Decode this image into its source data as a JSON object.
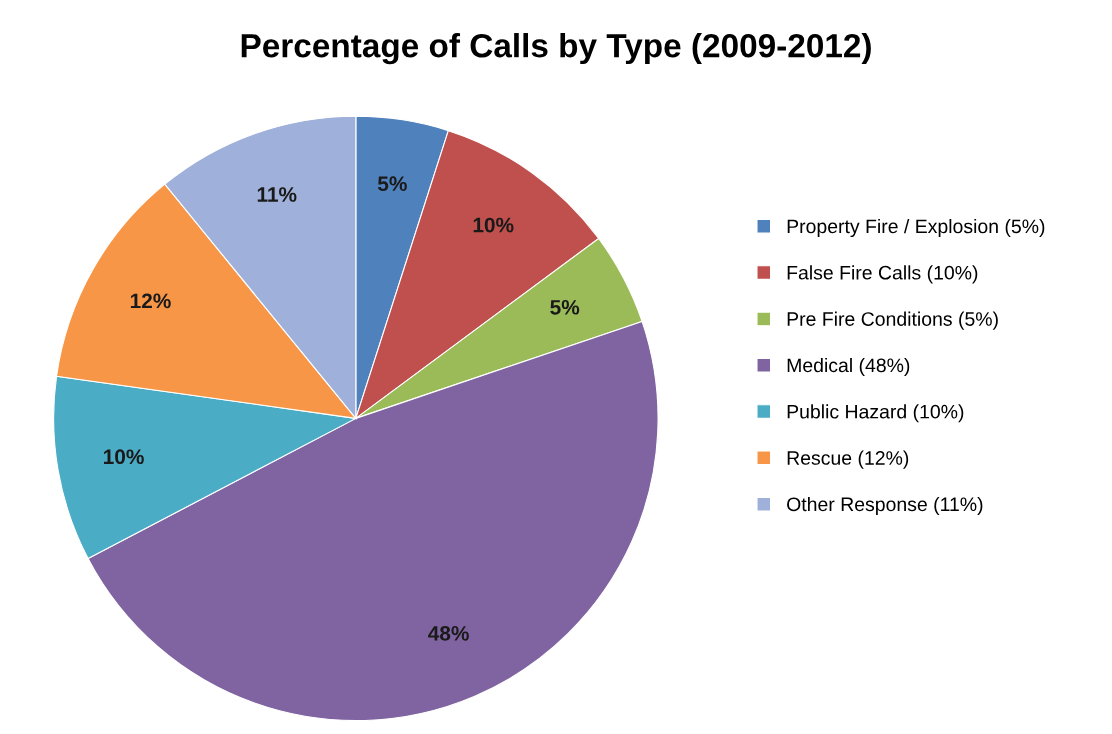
{
  "chart_data": {
    "type": "pie",
    "title": "Percentage of Calls by Type (2009-2012)",
    "categories": [
      "Property Fire / Explosion (5%)",
      "False Fire Calls (10%)",
      "Pre Fire Conditions (5%)",
      "Medical (48%)",
      "Public Hazard (10%)",
      "Rescue (12%)",
      "Other Response (11%)"
    ],
    "values": [
      5,
      10,
      5,
      48,
      10,
      12,
      11
    ],
    "colors": [
      "#4f81bd",
      "#c0504d",
      "#9bbb59",
      "#8064a2",
      "#4bacc6",
      "#f79646",
      "#9fb1da"
    ],
    "value_labels": [
      "5%",
      "10%",
      "5%",
      "48%",
      "10%",
      "12%",
      "11%"
    ],
    "legend": "right"
  }
}
